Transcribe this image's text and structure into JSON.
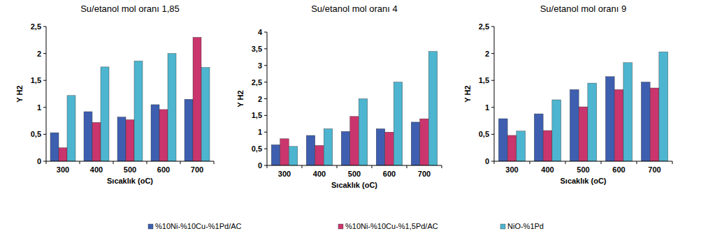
{
  "chart_data": [
    {
      "type": "bar",
      "title": "Su/etanol mol oranı 1,85",
      "x_label": "Sıcaklık (oC)",
      "y_label": "Y H2",
      "categories": [
        "300",
        "400",
        "500",
        "600",
        "700"
      ],
      "series": [
        {
          "name": "%10Ni-%10Cu-%1Pd/AC",
          "color": "#3e5fb0",
          "values": [
            0.53,
            0.92,
            0.82,
            1.05,
            1.15
          ]
        },
        {
          "name": "%10Ni-%10Cu-%1,5Pd/AC",
          "color": "#c9356c",
          "values": [
            0.25,
            0.72,
            0.77,
            0.96,
            2.3
          ]
        },
        {
          "name": "NiO-%1Pd",
          "color": "#4db5cf",
          "values": [
            1.22,
            1.75,
            1.86,
            2.0,
            1.74
          ]
        }
      ],
      "ylim": [
        0,
        2.5
      ],
      "yticks": [
        0,
        {
          "value": 0.5,
          "label": "0,5"
        },
        1,
        {
          "value": 1.5,
          "label": "1,5"
        },
        2,
        {
          "value": 2.5,
          "label": "2,5"
        }
      ],
      "grid": false,
      "legend": "bottom"
    },
    {
      "type": "bar",
      "title": "Su/etanol mol oranı 4",
      "x_label": "Sıcaklık (oC)",
      "y_label": "Y H2",
      "categories": [
        "300",
        "400",
        "500",
        "600",
        "700"
      ],
      "series": [
        {
          "name": "%10Ni-%10Cu-%1Pd/AC",
          "color": "#3e5fb0",
          "values": [
            0.62,
            0.9,
            1.02,
            1.1,
            1.3
          ]
        },
        {
          "name": "%10Ni-%10Cu-%1,5Pd/AC",
          "color": "#c9356c",
          "values": [
            0.8,
            0.6,
            1.47,
            1.0,
            1.4
          ]
        },
        {
          "name": "NiO-%1Pd",
          "color": "#4db5cf",
          "values": [
            0.57,
            1.1,
            2.0,
            2.5,
            3.42
          ]
        }
      ],
      "ylim": [
        0,
        4
      ],
      "yticks": [
        0,
        {
          "value": 0.5,
          "label": "0,5"
        },
        1,
        {
          "value": 1.5,
          "label": "1,5"
        },
        2,
        {
          "value": 2.5,
          "label": "2,5"
        },
        3,
        {
          "value": 3.5,
          "label": "3,5"
        },
        4
      ],
      "grid": false
    },
    {
      "type": "bar",
      "title": "Su/etanol mol oranı 9",
      "x_label": "Sıcaklık (oC)",
      "y_label": "Y H2",
      "categories": [
        "300",
        "400",
        "500",
        "600",
        "700"
      ],
      "series": [
        {
          "name": "%10Ni-%10Cu-%1Pd/AC",
          "color": "#3e5fb0",
          "values": [
            0.79,
            0.88,
            1.33,
            1.57,
            1.47
          ]
        },
        {
          "name": "%10Ni-%10Cu-%1,5Pd/AC",
          "color": "#c9356c",
          "values": [
            0.48,
            0.57,
            1.01,
            1.33,
            1.36
          ]
        },
        {
          "name": "NiO-%1Pd",
          "color": "#4db5cf",
          "values": [
            0.56,
            1.14,
            1.45,
            1.83,
            2.03
          ]
        }
      ],
      "ylim": [
        0,
        2.5
      ],
      "yticks": [
        0,
        {
          "value": 0.5,
          "label": "0,5"
        },
        1,
        {
          "value": 1.5,
          "label": "1,5"
        },
        2,
        {
          "value": 2.5,
          "label": "2,5"
        }
      ],
      "grid": false
    }
  ]
}
